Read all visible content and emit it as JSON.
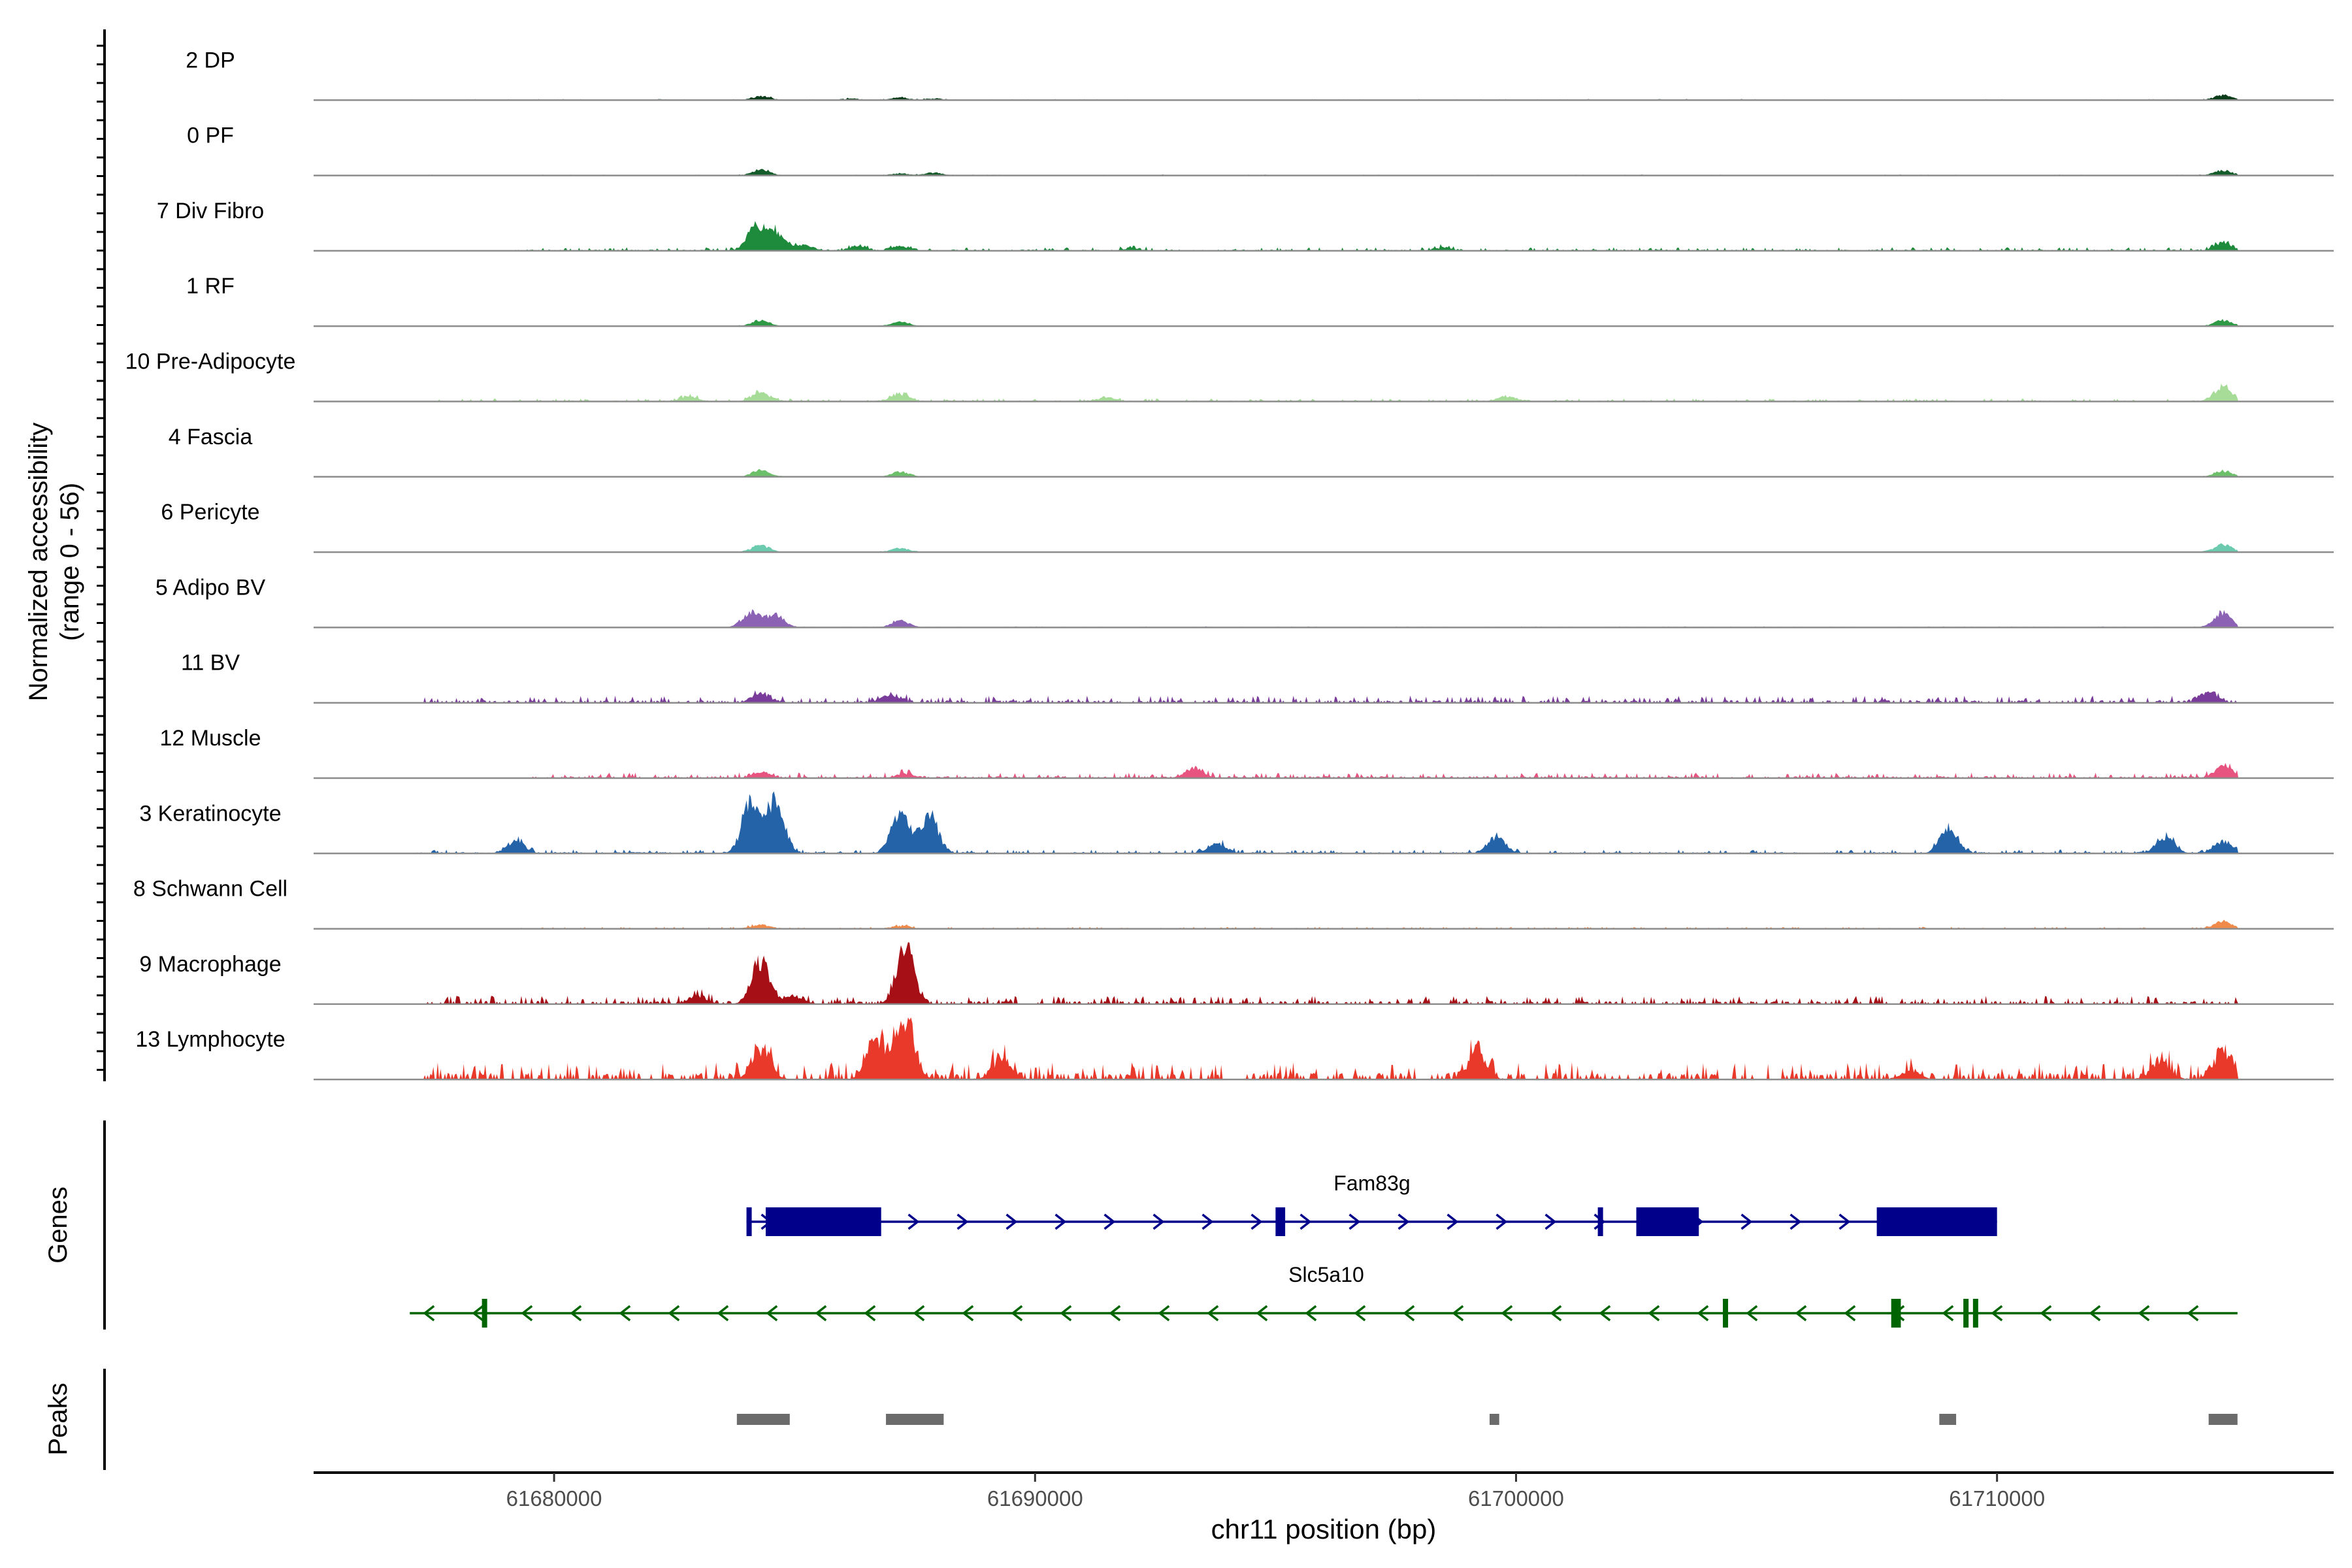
{
  "chart_data": {
    "type": "area",
    "title": "",
    "ylabel_line1": "Normalized accessibility",
    "ylabel_line2": "(range 0 - 56)",
    "y_range": [
      0,
      56
    ],
    "xlabel": "chr11 position (bp)",
    "xlim": [
      61675000,
      61717000
    ],
    "x_ticks": [
      61680000,
      61690000,
      61700000,
      61710000
    ],
    "x_tick_labels": [
      "61680000",
      "61690000",
      "61700000",
      "61710000"
    ],
    "tracks": [
      {
        "name": "2 DP",
        "color": "#0b3d1a",
        "scale": 0.35,
        "peaks": [
          [
            61684300,
            8
          ],
          [
            61686200,
            3
          ],
          [
            61687200,
            5
          ],
          [
            61687900,
            3
          ],
          [
            61714700,
            10
          ]
        ],
        "noise": 1.5,
        "span": [
          61677000,
          61715000
        ]
      },
      {
        "name": "0 PF",
        "color": "#145c2a",
        "scale": 0.35,
        "peaks": [
          [
            61684300,
            12
          ],
          [
            61687200,
            4
          ],
          [
            61687900,
            6
          ],
          [
            61714700,
            10
          ]
        ],
        "noise": 1.2,
        "span": [
          61677000,
          61715000
        ]
      },
      {
        "name": "7 Div Fibro",
        "color": "#1e8a3c",
        "scale": 0.55,
        "peaks": [
          [
            61684200,
            30
          ],
          [
            61684600,
            24
          ],
          [
            61685200,
            8
          ],
          [
            61686300,
            5
          ],
          [
            61687200,
            6
          ],
          [
            61692000,
            3
          ],
          [
            61698500,
            4
          ],
          [
            61714700,
            10
          ]
        ],
        "noise": 3,
        "span": [
          61679000,
          61715000
        ]
      },
      {
        "name": "1 RF",
        "color": "#2f9a45",
        "scale": 0.35,
        "peaks": [
          [
            61684300,
            12
          ],
          [
            61687200,
            8
          ],
          [
            61714700,
            12
          ]
        ],
        "noise": 1,
        "span": [
          61677000,
          61715000
        ]
      },
      {
        "name": "10 Pre-Adipocyte",
        "color": "#a6dc98",
        "scale": 0.45,
        "peaks": [
          [
            61682800,
            8
          ],
          [
            61684300,
            14
          ],
          [
            61687200,
            12
          ],
          [
            61691500,
            6
          ],
          [
            61699800,
            8
          ],
          [
            61714700,
            24
          ]
        ],
        "noise": 3,
        "span": [
          61677500,
          61715000
        ]
      },
      {
        "name": "4 Fascia",
        "color": "#6dc06a",
        "scale": 0.35,
        "peaks": [
          [
            61684300,
            14
          ],
          [
            61687200,
            10
          ],
          [
            61714700,
            12
          ]
        ],
        "noise": 1,
        "span": [
          61683000,
          61715000
        ]
      },
      {
        "name": "6 Pericyte",
        "color": "#6ccbae",
        "scale": 0.35,
        "peaks": [
          [
            61684300,
            14
          ],
          [
            61687200,
            8
          ],
          [
            61714700,
            16
          ]
        ],
        "noise": 1,
        "span": [
          61681000,
          61715000
        ]
      },
      {
        "name": "5 Adipo BV",
        "color": "#8c62b5",
        "scale": 0.4,
        "peaks": [
          [
            61684100,
            26
          ],
          [
            61684600,
            22
          ],
          [
            61687200,
            12
          ],
          [
            61714700,
            26
          ]
        ],
        "noise": 1.2,
        "span": [
          61683500,
          61715000
        ]
      },
      {
        "name": "11 BV",
        "color": "#7a3c9a",
        "scale": 0.55,
        "peaks": [
          [
            61684300,
            12
          ],
          [
            61687000,
            10
          ],
          [
            61714400,
            14
          ]
        ],
        "noise": 6,
        "span": [
          61677300,
          61715000
        ]
      },
      {
        "name": "12 Muscle",
        "color": "#e75480",
        "scale": 0.5,
        "peaks": [
          [
            61684300,
            8
          ],
          [
            61687300,
            6
          ],
          [
            61693300,
            14
          ],
          [
            61714700,
            16
          ]
        ],
        "noise": 5,
        "span": [
          61679500,
          61715000
        ]
      },
      {
        "name": "3 Keratinocyte",
        "color": "#2563a8",
        "scale": 0.9,
        "peaks": [
          [
            61684100,
            40
          ],
          [
            61684600,
            40
          ],
          [
            61687200,
            32
          ],
          [
            61687800,
            30
          ],
          [
            61679200,
            10
          ],
          [
            61693800,
            8
          ],
          [
            61699600,
            14
          ],
          [
            61709000,
            20
          ],
          [
            61713500,
            14
          ],
          [
            61714700,
            10
          ]
        ],
        "noise": 2,
        "span": [
          61677000,
          61715000
        ]
      },
      {
        "name": "8 Schwann Cell",
        "color": "#f08a4b",
        "scale": 0.35,
        "peaks": [
          [
            61684300,
            8
          ],
          [
            61687200,
            6
          ],
          [
            61714700,
            16
          ]
        ],
        "noise": 2.5,
        "span": [
          61679000,
          61715000
        ]
      },
      {
        "name": "9 Macrophage",
        "color": "#a50f15",
        "scale": 0.95,
        "peaks": [
          [
            61684300,
            32
          ],
          [
            61687300,
            42
          ],
          [
            61683000,
            6
          ],
          [
            61685000,
            6
          ]
        ],
        "noise": 4,
        "span": [
          61677300,
          61715000
        ]
      },
      {
        "name": "13 Lymphocyte",
        "color": "#e8392b",
        "scale": 1.0,
        "peaks": [
          [
            61684300,
            20
          ],
          [
            61686700,
            28
          ],
          [
            61687300,
            44
          ],
          [
            61689300,
            14
          ],
          [
            61699200,
            20
          ],
          [
            61708200,
            6
          ],
          [
            61713400,
            14
          ],
          [
            61714700,
            20
          ]
        ],
        "noise": 8,
        "span": [
          61677300,
          61715000
        ]
      }
    ],
    "genes": [
      {
        "name": "Fam83g",
        "strand": "+",
        "color": "#00008b",
        "start": 61684000,
        "end": 61710000,
        "exons": [
          [
            61684000,
            61684100
          ],
          [
            61684400,
            61686800
          ],
          [
            61695000,
            61695200
          ],
          [
            61701700,
            61701800
          ],
          [
            61702500,
            61703800
          ],
          [
            61707500,
            61710000
          ]
        ]
      },
      {
        "name": "Slc5a10",
        "strand": "-",
        "color": "#006400",
        "start": 61677000,
        "end": 61715000,
        "exons": [
          [
            61678500,
            61678600
          ],
          [
            61704300,
            61704400
          ],
          [
            61707800,
            61708000
          ],
          [
            61709300,
            61709400
          ],
          [
            61709500,
            61709600
          ]
        ]
      }
    ],
    "peaks_track": [
      [
        61683800,
        61684900
      ],
      [
        61686900,
        61688100
      ],
      [
        61699450,
        61699650
      ],
      [
        61708800,
        61709150
      ],
      [
        61714400,
        61715000
      ]
    ],
    "panel_labels": {
      "genes": "Genes",
      "peaks": "Peaks"
    }
  }
}
